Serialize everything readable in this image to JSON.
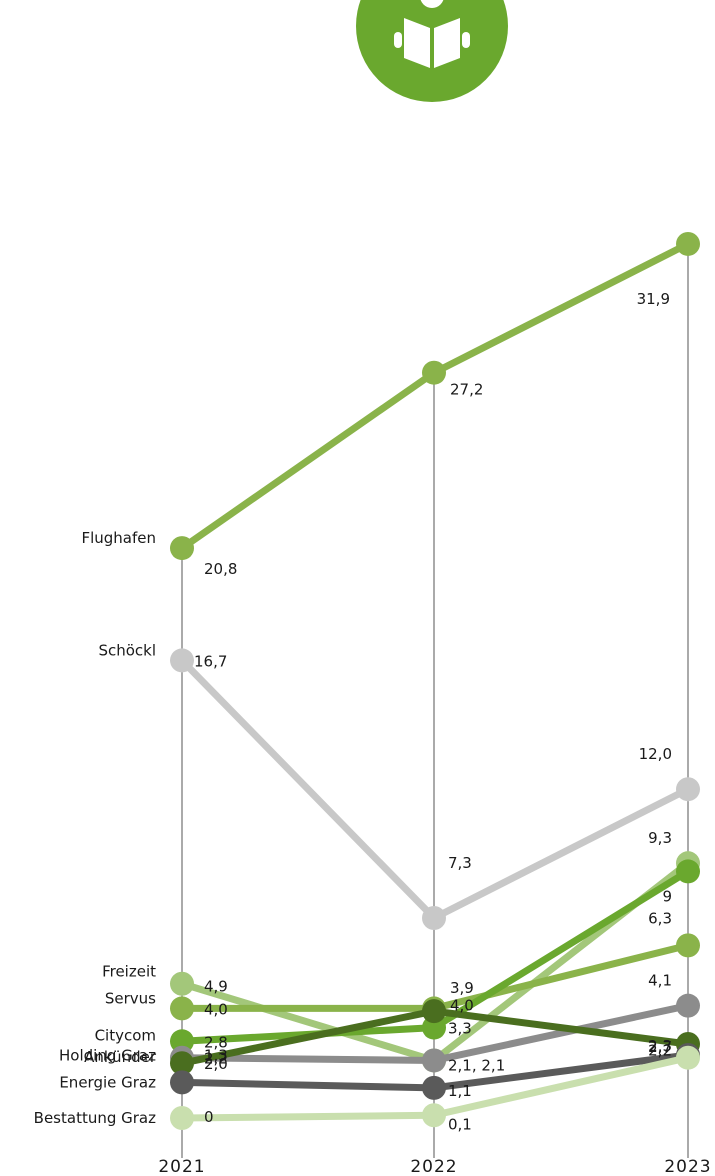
{
  "chart_data": {
    "type": "line",
    "title": "",
    "xlabel": "",
    "ylabel": "",
    "x": [
      "2021",
      "2022",
      "2023"
    ],
    "grid": "vertical lines at each year",
    "icon": "reading-person-icon",
    "series": [
      {
        "name": "Flughafen",
        "values": [
          20.8,
          27.2,
          31.9
        ],
        "labels": [
          "20,8",
          "27,2",
          "31,9"
        ],
        "color": "#8ab34a"
      },
      {
        "name": "Schöckl",
        "values": [
          16.7,
          7.3,
          12.0
        ],
        "labels": [
          "16,7",
          "7,3",
          "12,0"
        ],
        "color": "#c8c8c8"
      },
      {
        "name": "Freizeit",
        "values": [
          4.9,
          2.1,
          9.3
        ],
        "labels": [
          "4,9",
          "",
          "9,3"
        ],
        "color": "#a3c77a"
      },
      {
        "name": "Servus",
        "values": [
          4.0,
          4.0,
          6.3
        ],
        "labels": [
          "4,0",
          "4,0",
          "6,3"
        ],
        "color": "#8ab34a"
      },
      {
        "name": "Citycom",
        "values": [
          2.8,
          3.3,
          9.0
        ],
        "labels": [
          "2,8",
          "3,3",
          "9"
        ],
        "color": "#6aa82e"
      },
      {
        "name": "Holding Graz",
        "values": [
          2.2,
          2.1,
          4.1
        ],
        "labels": [
          "2,2",
          "2,1, 2,1",
          "4,1"
        ],
        "color": "#8c8c8c"
      },
      {
        "name": "Ankünder",
        "values": [
          2.0,
          3.9,
          2.7
        ],
        "labels": [
          "2,0",
          "3,9",
          "2,7"
        ],
        "color": "#4a6e1f"
      },
      {
        "name": "Energie Graz",
        "values": [
          1.3,
          1.1,
          2.3
        ],
        "labels": [
          "1,3",
          "1,1",
          "2,3"
        ],
        "color": "#5a5a5a"
      },
      {
        "name": "Bestattung Graz",
        "values": [
          0,
          0.1,
          2.2
        ],
        "labels": [
          "0",
          "0,1",
          "2,2"
        ],
        "color": "#c9dfae"
      }
    ]
  }
}
